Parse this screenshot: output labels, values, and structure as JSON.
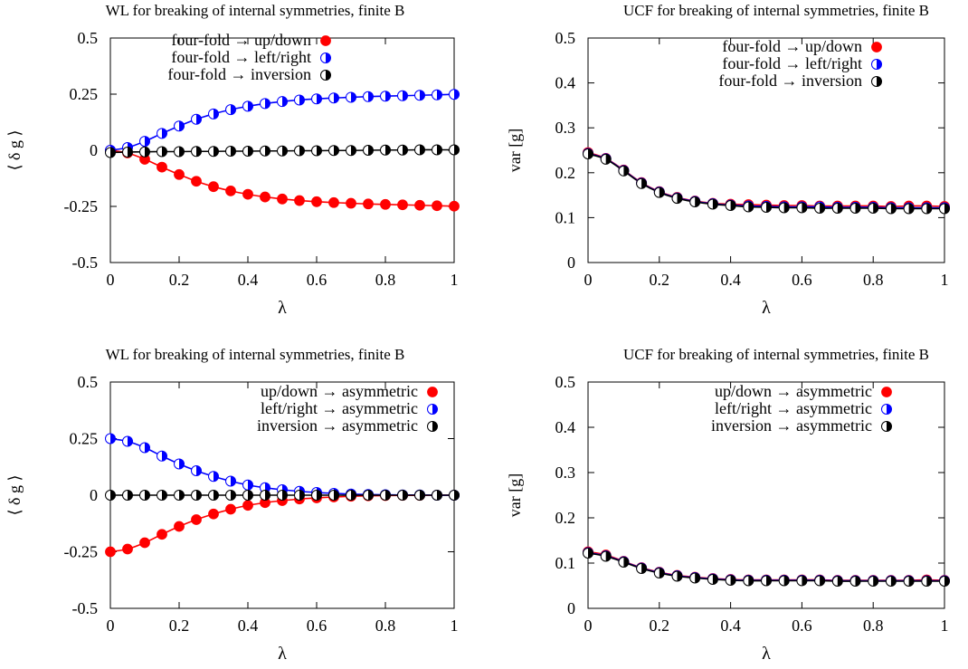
{
  "chart_data": [
    {
      "type": "scatter",
      "title": "WL for breaking of internal symmetries, finite B",
      "xlabel": "λ",
      "ylabel": "⟨ δ g ⟩",
      "xlim": [
        0,
        1
      ],
      "ylim": [
        -0.5,
        0.5
      ],
      "xticks": [
        "0",
        "0.2",
        "0.4",
        "0.6",
        "0.8",
        "1"
      ],
      "yticks": [
        "-0.5",
        "-0.25",
        "0",
        "0.25",
        "0.5"
      ],
      "legend_position": "top-left",
      "x": [
        0,
        0.05,
        0.1,
        0.15,
        0.2,
        0.25,
        0.3,
        0.35,
        0.4,
        0.45,
        0.5,
        0.55,
        0.6,
        0.65,
        0.7,
        0.75,
        0.8,
        0.85,
        0.9,
        0.95,
        1.0
      ],
      "series": [
        {
          "name": "four-fold → up/down",
          "color": "#ff0000",
          "marker": "filled",
          "values": [
            0,
            -0.012,
            -0.04,
            -0.075,
            -0.108,
            -0.138,
            -0.162,
            -0.181,
            -0.196,
            -0.208,
            -0.217,
            -0.224,
            -0.229,
            -0.233,
            -0.236,
            -0.239,
            -0.241,
            -0.243,
            -0.245,
            -0.247,
            -0.249
          ]
        },
        {
          "name": "four-fold → left/right",
          "color": "#0000ff",
          "marker": "half",
          "values": [
            0,
            0.012,
            0.04,
            0.075,
            0.108,
            0.138,
            0.162,
            0.181,
            0.196,
            0.208,
            0.217,
            0.224,
            0.229,
            0.233,
            0.236,
            0.239,
            0.241,
            0.243,
            0.245,
            0.247,
            0.249
          ]
        },
        {
          "name": "four-fold → inversion",
          "color": "#000000",
          "marker": "half",
          "values": [
            -0.01,
            -0.008,
            -0.007,
            -0.006,
            -0.006,
            -0.005,
            -0.005,
            -0.004,
            -0.004,
            -0.003,
            -0.003,
            -0.002,
            -0.002,
            -0.001,
            -0.001,
            0,
            0.001,
            0.001,
            0.002,
            0.002,
            0.002
          ]
        }
      ]
    },
    {
      "type": "scatter",
      "title": "UCF for breaking of internal symmetries, finite B",
      "xlabel": "λ",
      "ylabel": "var [g]",
      "xlim": [
        0,
        1
      ],
      "ylim": [
        0,
        0.5
      ],
      "xticks": [
        "0",
        "0.2",
        "0.4",
        "0.6",
        "0.8",
        "1"
      ],
      "yticks": [
        "0",
        "0.1",
        "0.2",
        "0.3",
        "0.4",
        "0.5"
      ],
      "legend_position": "top-right",
      "x": [
        0,
        0.05,
        0.1,
        0.15,
        0.2,
        0.25,
        0.3,
        0.35,
        0.4,
        0.45,
        0.5,
        0.55,
        0.6,
        0.65,
        0.7,
        0.75,
        0.8,
        0.85,
        0.9,
        0.95,
        1.0
      ],
      "series": [
        {
          "name": "four-fold → up/down",
          "color": "#ff0000",
          "marker": "filled",
          "values": [
            0.245,
            0.232,
            0.206,
            0.178,
            0.158,
            0.145,
            0.137,
            0.132,
            0.13,
            0.129,
            0.128,
            0.127,
            0.127,
            0.126,
            0.126,
            0.126,
            0.126,
            0.125,
            0.126,
            0.126,
            0.125
          ]
        },
        {
          "name": "four-fold → left/right",
          "color": "#0000ff",
          "marker": "half",
          "values": [
            0.243,
            0.231,
            0.205,
            0.177,
            0.157,
            0.144,
            0.136,
            0.131,
            0.128,
            0.126,
            0.125,
            0.124,
            0.124,
            0.124,
            0.123,
            0.123,
            0.123,
            0.122,
            0.122,
            0.122,
            0.122
          ]
        },
        {
          "name": "four-fold → inversion",
          "color": "#000000",
          "marker": "half",
          "values": [
            0.242,
            0.23,
            0.204,
            0.176,
            0.156,
            0.143,
            0.135,
            0.13,
            0.127,
            0.124,
            0.123,
            0.122,
            0.122,
            0.121,
            0.121,
            0.121,
            0.121,
            0.12,
            0.12,
            0.12,
            0.12
          ]
        }
      ]
    },
    {
      "type": "scatter",
      "title": "WL for breaking of internal symmetries, finite B",
      "xlabel": "λ",
      "ylabel": "⟨ δ g ⟩",
      "xlim": [
        0,
        1
      ],
      "ylim": [
        -0.5,
        0.5
      ],
      "xticks": [
        "0",
        "0.2",
        "0.4",
        "0.6",
        "0.8",
        "1"
      ],
      "yticks": [
        "-0.5",
        "-0.25",
        "0",
        "0.25",
        "0.5"
      ],
      "legend_position": "top-right",
      "x": [
        0,
        0.05,
        0.1,
        0.15,
        0.2,
        0.25,
        0.3,
        0.35,
        0.4,
        0.45,
        0.5,
        0.55,
        0.6,
        0.65,
        0.7,
        0.75,
        0.8,
        0.85,
        0.9,
        0.95,
        1.0
      ],
      "series": [
        {
          "name": "up/down → asymmetric",
          "color": "#ff0000",
          "marker": "filled",
          "values": [
            -0.25,
            -0.238,
            -0.21,
            -0.173,
            -0.138,
            -0.108,
            -0.083,
            -0.062,
            -0.045,
            -0.033,
            -0.024,
            -0.017,
            -0.012,
            -0.008,
            -0.005,
            -0.003,
            -0.002,
            -0.001,
            -0.001,
            0,
            0
          ]
        },
        {
          "name": "left/right → asymmetric",
          "color": "#0000ff",
          "marker": "half",
          "values": [
            0.25,
            0.238,
            0.21,
            0.173,
            0.138,
            0.108,
            0.083,
            0.062,
            0.045,
            0.033,
            0.024,
            0.017,
            0.012,
            0.008,
            0.005,
            0.003,
            0.002,
            0.001,
            0.001,
            0,
            0
          ]
        },
        {
          "name": "inversion → asymmetric",
          "color": "#000000",
          "marker": "half",
          "values": [
            0,
            0,
            0,
            0,
            0,
            0,
            0,
            0,
            0,
            0,
            0,
            0,
            0,
            0,
            0,
            0,
            0,
            0,
            0,
            0,
            0
          ]
        }
      ]
    },
    {
      "type": "scatter",
      "title": "UCF for breaking of internal symmetries, finite B",
      "xlabel": "λ",
      "ylabel": "var [g]",
      "xlim": [
        0,
        1
      ],
      "ylim": [
        0,
        0.5
      ],
      "xticks": [
        "0",
        "0.2",
        "0.4",
        "0.6",
        "0.8",
        "1"
      ],
      "yticks": [
        "0",
        "0.1",
        "0.2",
        "0.3",
        "0.4",
        "0.5"
      ],
      "legend_position": "top-right",
      "x": [
        0,
        0.05,
        0.1,
        0.15,
        0.2,
        0.25,
        0.3,
        0.35,
        0.4,
        0.45,
        0.5,
        0.55,
        0.6,
        0.65,
        0.7,
        0.75,
        0.8,
        0.85,
        0.9,
        0.95,
        1.0
      ],
      "series": [
        {
          "name": "up/down → asymmetric",
          "color": "#ff0000",
          "marker": "filled",
          "values": [
            0.125,
            0.118,
            0.104,
            0.09,
            0.08,
            0.073,
            0.069,
            0.066,
            0.064,
            0.063,
            0.063,
            0.063,
            0.063,
            0.063,
            0.062,
            0.062,
            0.062,
            0.062,
            0.062,
            0.063,
            0.062
          ]
        },
        {
          "name": "left/right → asymmetric",
          "color": "#0000ff",
          "marker": "half",
          "values": [
            0.123,
            0.116,
            0.103,
            0.089,
            0.079,
            0.072,
            0.068,
            0.065,
            0.063,
            0.062,
            0.062,
            0.062,
            0.062,
            0.062,
            0.061,
            0.061,
            0.061,
            0.061,
            0.061,
            0.061,
            0.061
          ]
        },
        {
          "name": "inversion → asymmetric",
          "color": "#000000",
          "marker": "half",
          "values": [
            0.122,
            0.115,
            0.102,
            0.088,
            0.078,
            0.071,
            0.067,
            0.064,
            0.062,
            0.061,
            0.061,
            0.061,
            0.061,
            0.061,
            0.06,
            0.06,
            0.06,
            0.06,
            0.06,
            0.06,
            0.06
          ]
        }
      ]
    }
  ]
}
